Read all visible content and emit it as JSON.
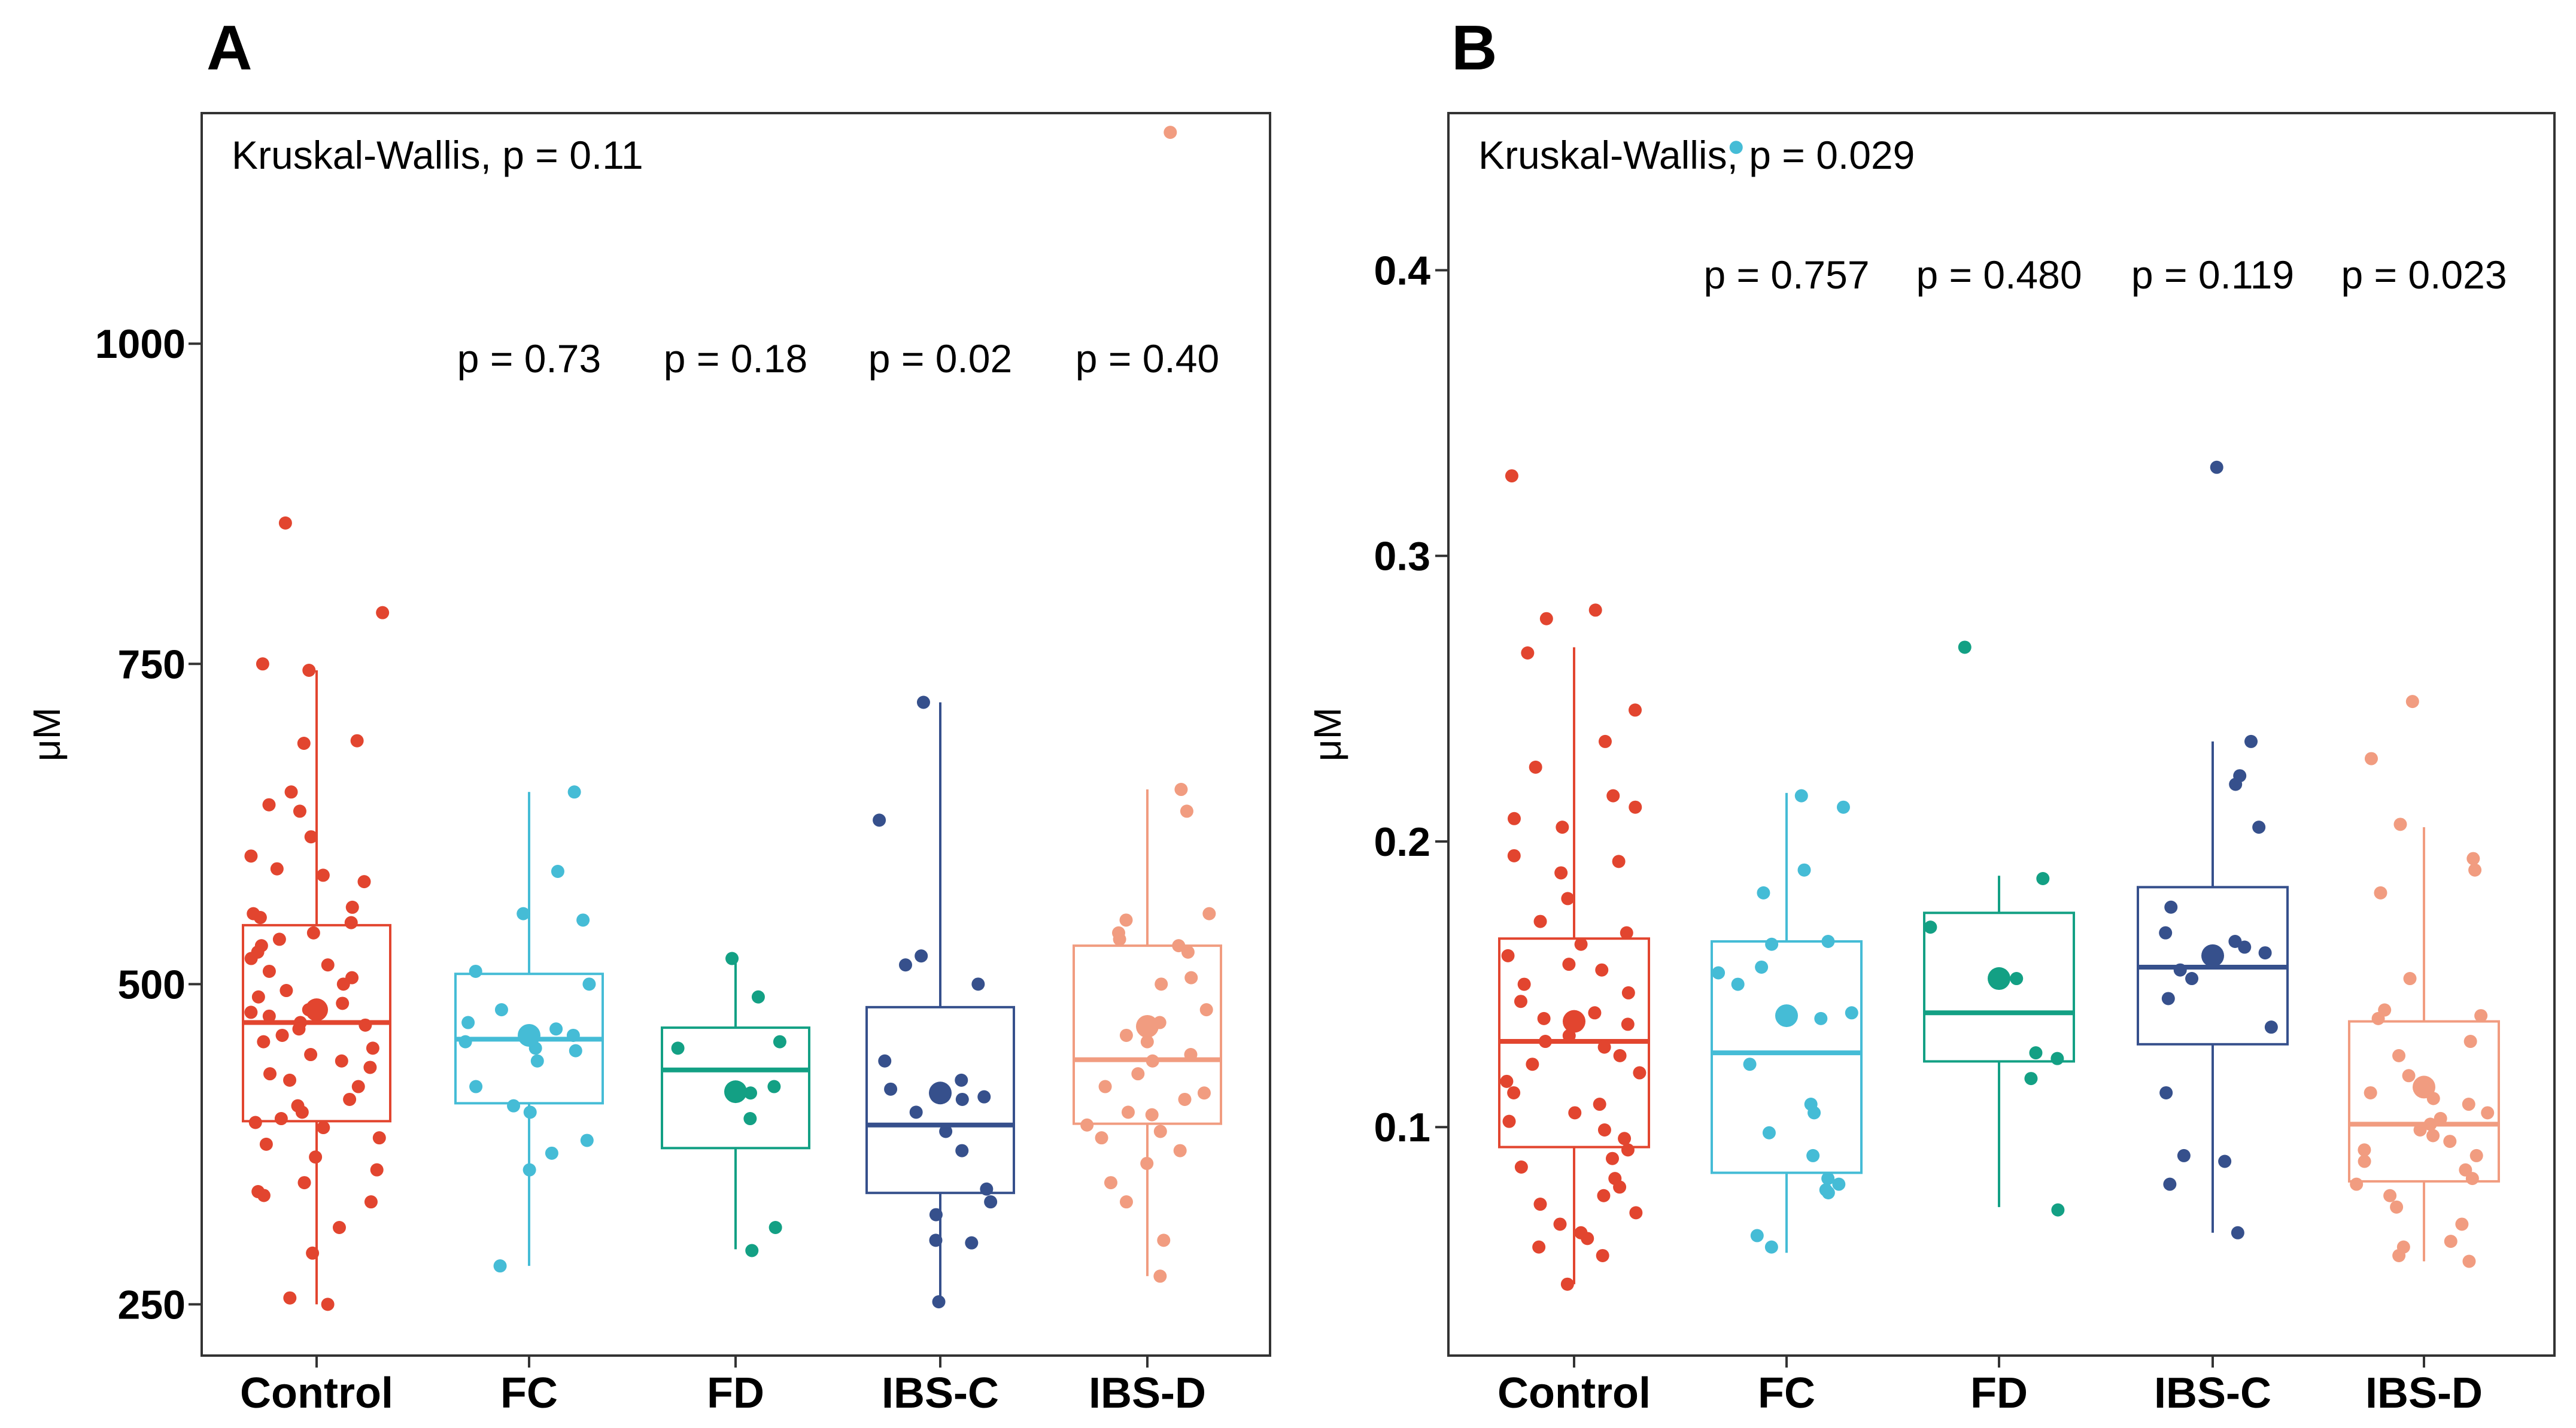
{
  "colors": {
    "Control": "#e2452f",
    "FC": "#45bcd6",
    "FD": "#13a084",
    "IBS-C": "#36508c",
    "IBS-D": "#f19c80"
  },
  "chart_data": [
    {
      "panel": "A",
      "type": "box",
      "ylabel": "μM",
      "ylim": [
        210,
        1180
      ],
      "yticks": [
        250,
        500,
        750,
        1000
      ],
      "categories": [
        "Control",
        "FC",
        "FD",
        "IBS-C",
        "IBS-D"
      ],
      "annotation": "Kruskal-Wallis, p = 0.11",
      "pvalues": [
        null,
        "p = 0.73",
        "p = 0.18",
        "p = 0.02",
        "p = 0.40"
      ],
      "boxes": [
        {
          "q1": 393,
          "median": 470,
          "q3": 546,
          "lo": 250,
          "hi": 745,
          "mean": 480
        },
        {
          "q1": 407,
          "median": 457,
          "q3": 508,
          "lo": 280,
          "hi": 650,
          "mean": 460
        },
        {
          "q1": 372,
          "median": 433,
          "q3": 466,
          "lo": 293,
          "hi": 520,
          "mean": 416
        },
        {
          "q1": 337,
          "median": 390,
          "q3": 482,
          "lo": 252,
          "hi": 720,
          "mean": 415
        },
        {
          "q1": 391,
          "median": 441,
          "q3": 530,
          "lo": 272,
          "hi": 652,
          "mean": 467
        }
      ],
      "points": [
        [
          860,
          790,
          750,
          745,
          690,
          688,
          650,
          640,
          635,
          615,
          600,
          590,
          585,
          580,
          560,
          555,
          552,
          548,
          540,
          535,
          530,
          525,
          520,
          515,
          510,
          505,
          500,
          495,
          490,
          485,
          480,
          478,
          475,
          470,
          468,
          465,
          460,
          455,
          450,
          445,
          440,
          435,
          430,
          425,
          420,
          410,
          405,
          400,
          395,
          392,
          388,
          380,
          375,
          365,
          355,
          345,
          338,
          335,
          330,
          310,
          290,
          255,
          250
        ],
        [
          650,
          588,
          555,
          550,
          510,
          500,
          480,
          470,
          465,
          460,
          455,
          450,
          448,
          440,
          420,
          405,
          400,
          378,
          368,
          355,
          280
        ],
        [
          520,
          490,
          455,
          450,
          420,
          415,
          395,
          310,
          292
        ],
        [
          720,
          628,
          522,
          515,
          500,
          440,
          425,
          418,
          412,
          410,
          400,
          385,
          370,
          340,
          330,
          320,
          300,
          298,
          252
        ],
        [
          652,
          635,
          555,
          550,
          540,
          535,
          530,
          525,
          505,
          500,
          480,
          470,
          460,
          455,
          445,
          440,
          430,
          420,
          415,
          410,
          400,
          398,
          390,
          385,
          380,
          370,
          360,
          345,
          330,
          300,
          272,
          1165
        ]
      ]
    },
    {
      "panel": "B",
      "type": "box",
      "ylabel": "μM",
      "ylim": [
        0.02,
        0.455
      ],
      "yticks": [
        0.1,
        0.2,
        0.3,
        0.4
      ],
      "categories": [
        "Control",
        "FC",
        "FD",
        "IBS-C",
        "IBS-D"
      ],
      "annotation": "Kruskal-Wallis, p = 0.029",
      "pvalues": [
        null,
        "p = 0.757",
        "p = 0.480",
        "p = 0.119",
        "p = 0.023"
      ],
      "boxes": [
        {
          "q1": 0.093,
          "median": 0.13,
          "q3": 0.166,
          "lo": 0.045,
          "hi": 0.268,
          "mean": 0.137
        },
        {
          "q1": 0.084,
          "median": 0.126,
          "q3": 0.165,
          "lo": 0.056,
          "hi": 0.217,
          "mean": 0.139
        },
        {
          "q1": 0.123,
          "median": 0.14,
          "q3": 0.175,
          "lo": 0.072,
          "hi": 0.188,
          "mean": 0.152
        },
        {
          "q1": 0.129,
          "median": 0.156,
          "q3": 0.184,
          "lo": 0.063,
          "hi": 0.235,
          "mean": 0.16
        },
        {
          "q1": 0.081,
          "median": 0.101,
          "q3": 0.137,
          "lo": 0.053,
          "hi": 0.205,
          "mean": 0.114
        }
      ],
      "points": [
        [
          0.328,
          0.281,
          0.278,
          0.266,
          0.246,
          0.235,
          0.226,
          0.216,
          0.212,
          0.208,
          0.205,
          0.195,
          0.193,
          0.189,
          0.18,
          0.172,
          0.168,
          0.164,
          0.16,
          0.157,
          0.155,
          0.15,
          0.147,
          0.144,
          0.14,
          0.138,
          0.136,
          0.132,
          0.13,
          0.128,
          0.125,
          0.122,
          0.119,
          0.116,
          0.112,
          0.108,
          0.105,
          0.102,
          0.099,
          0.096,
          0.092,
          0.089,
          0.086,
          0.082,
          0.079,
          0.076,
          0.073,
          0.07,
          0.066,
          0.063,
          0.061,
          0.058,
          0.055,
          0.045
        ],
        [
          0.443,
          0.216,
          0.212,
          0.19,
          0.182,
          0.165,
          0.164,
          0.156,
          0.154,
          0.15,
          0.14,
          0.138,
          0.122,
          0.108,
          0.105,
          0.098,
          0.09,
          0.082,
          0.08,
          0.078,
          0.077,
          0.062,
          0.058
        ],
        [
          0.268,
          0.187,
          0.17,
          0.152,
          0.126,
          0.124,
          0.117,
          0.071
        ],
        [
          0.331,
          0.235,
          0.223,
          0.22,
          0.205,
          0.177,
          0.168,
          0.165,
          0.163,
          0.161,
          0.16,
          0.155,
          0.152,
          0.145,
          0.135,
          0.112,
          0.09,
          0.088,
          0.08,
          0.063
        ],
        [
          0.249,
          0.229,
          0.206,
          0.194,
          0.19,
          0.182,
          0.152,
          0.141,
          0.139,
          0.138,
          0.13,
          0.125,
          0.118,
          0.112,
          0.11,
          0.108,
          0.105,
          0.103,
          0.101,
          0.099,
          0.097,
          0.095,
          0.092,
          0.09,
          0.088,
          0.085,
          0.082,
          0.08,
          0.076,
          0.072,
          0.066,
          0.06,
          0.058,
          0.055,
          0.053
        ]
      ]
    }
  ]
}
